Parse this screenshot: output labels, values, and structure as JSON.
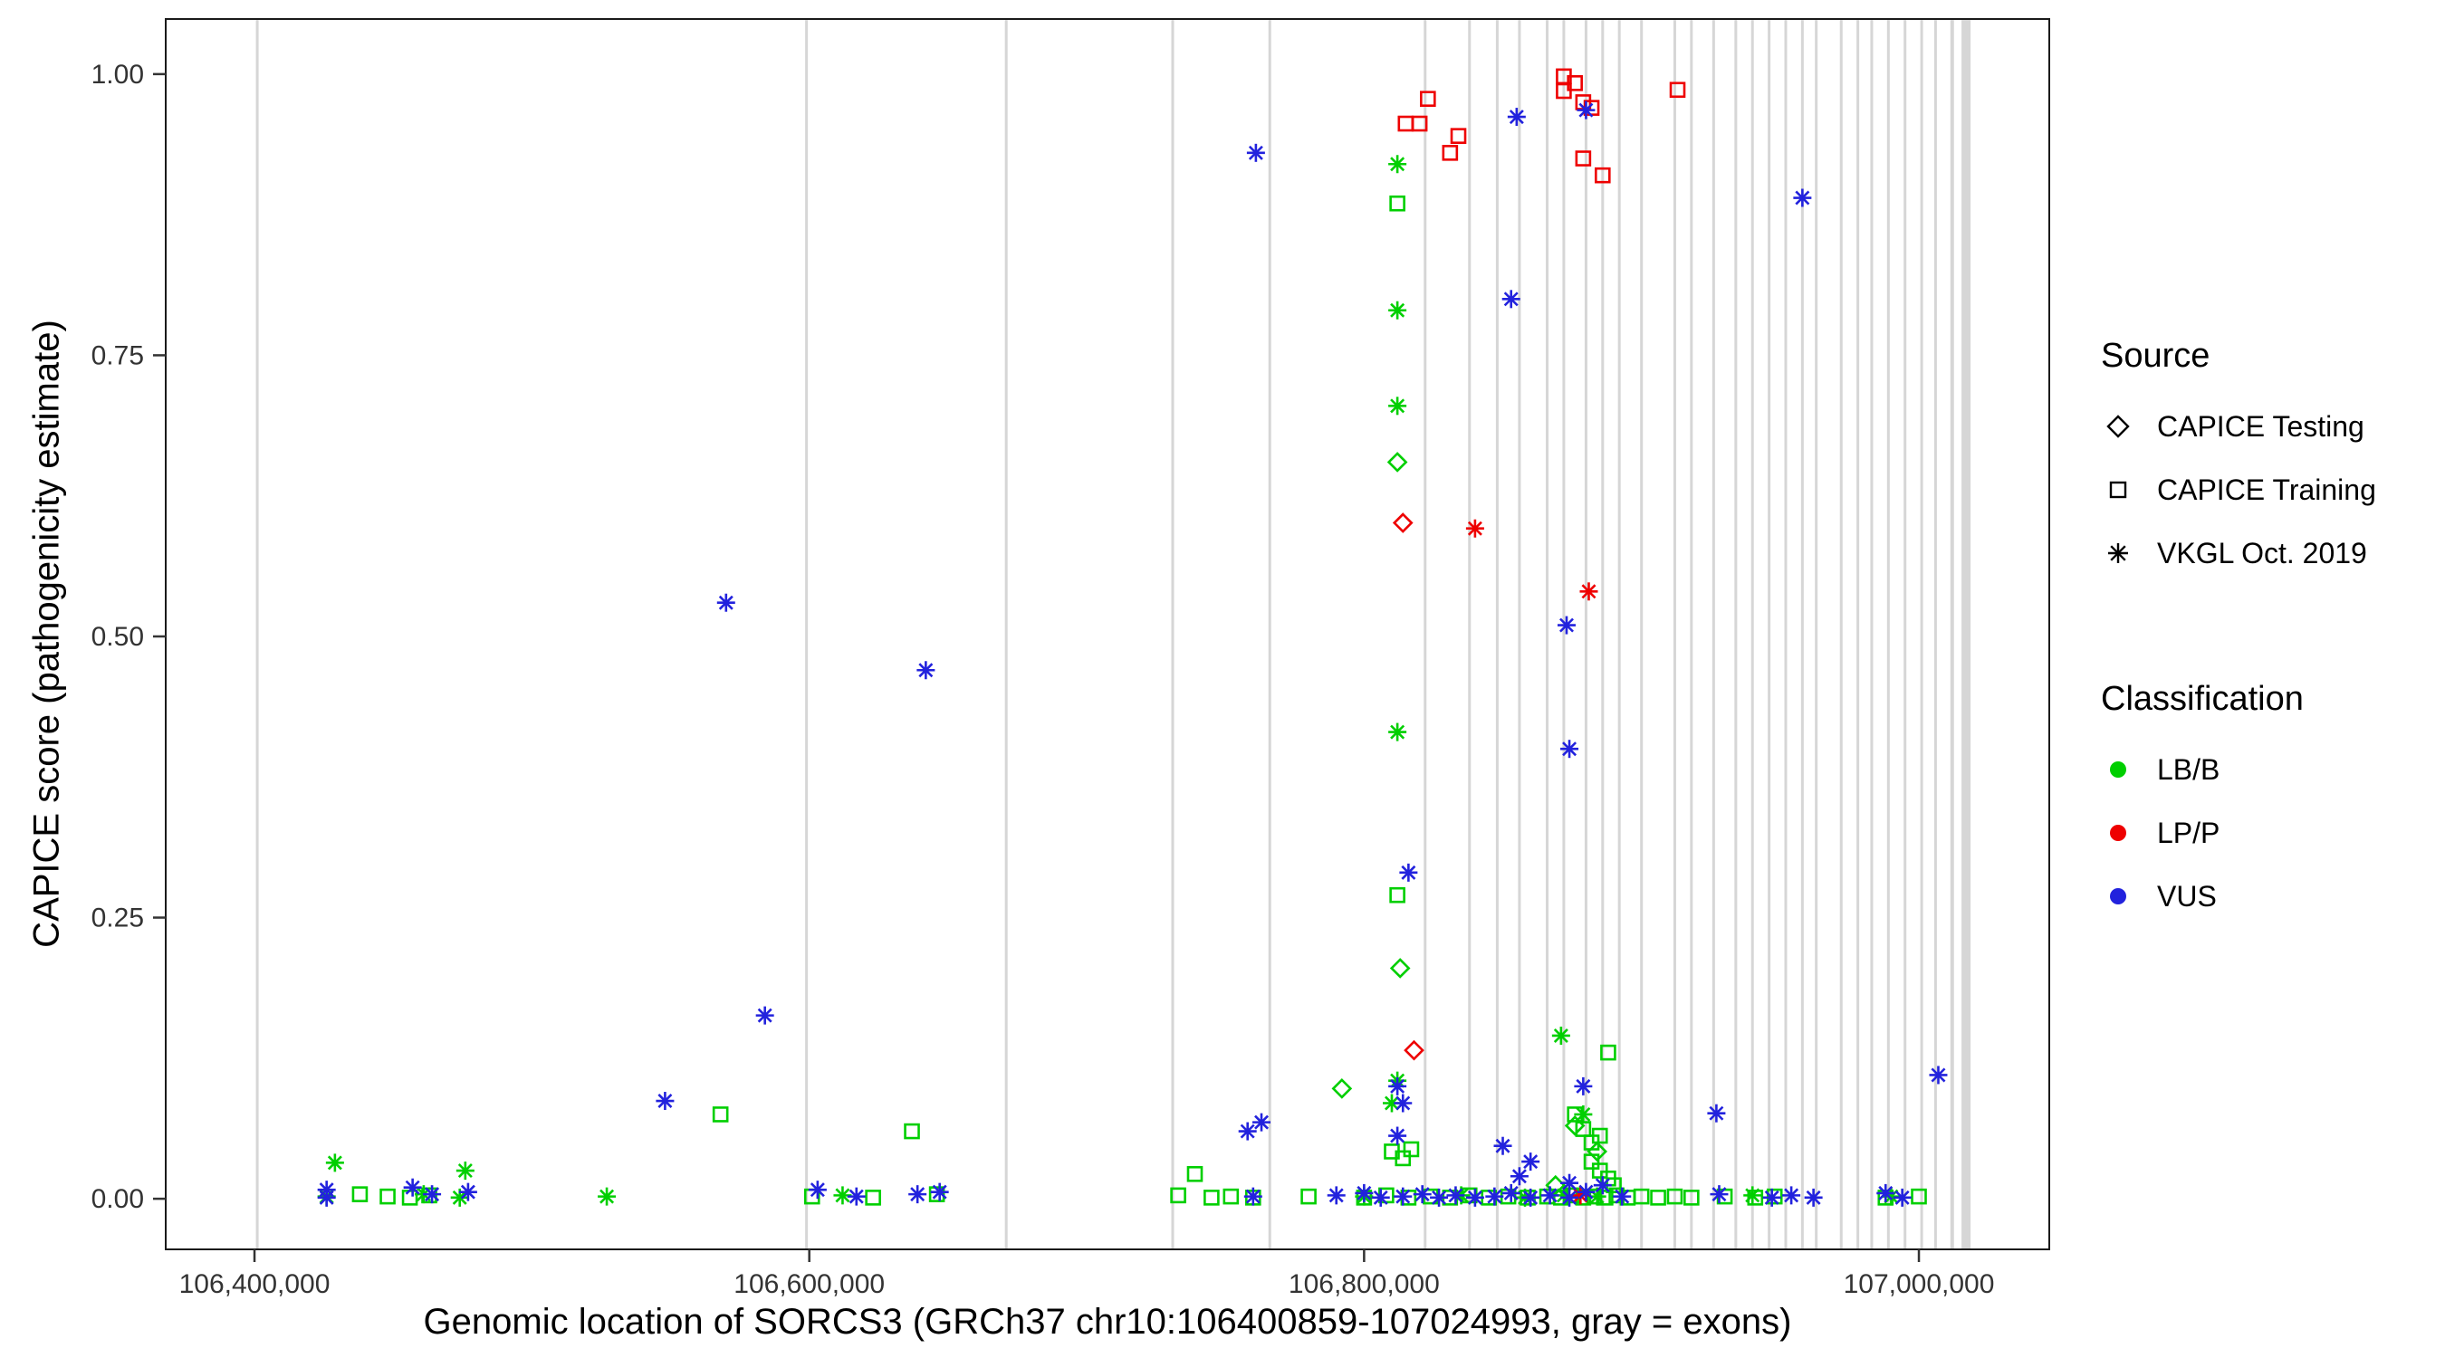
{
  "figure": {
    "x_axis_title": "Genomic location of SORCS3 (GRCh37 chr10:106400859-107024993, gray = exons)",
    "y_axis_title": "CAPICE score (pathogenicity estimate)"
  },
  "legend": {
    "source": {
      "title": "Source",
      "items": [
        {
          "label": "CAPICE Testing",
          "shape": "diamond"
        },
        {
          "label": "CAPICE Training",
          "shape": "square"
        },
        {
          "label": "VKGL Oct. 2019",
          "shape": "asterisk"
        }
      ]
    },
    "classification": {
      "title": "Classification",
      "items": [
        {
          "label": "LB/B",
          "color": "#00CF00"
        },
        {
          "label": "LP/P",
          "color": "#EE0000"
        },
        {
          "label": "VUS",
          "color": "#2222DD"
        }
      ]
    }
  },
  "chart_data": {
    "type": "scatter",
    "title": "",
    "xlabel": "Genomic location of SORCS3 (GRCh37 chr10:106400859-107024993, gray = exons)",
    "ylabel": "CAPICE score (pathogenicity estimate)",
    "x_domain": [
      106368000,
      107047000
    ],
    "y_domain": [
      -0.045,
      1.049
    ],
    "x_ticks": [
      {
        "value": 106400000,
        "label": "106,400,000"
      },
      {
        "value": 106600000,
        "label": "106,600,000"
      },
      {
        "value": 106800000,
        "label": "106,800,000"
      },
      {
        "value": 107000000,
        "label": "107,000,000"
      }
    ],
    "y_ticks": [
      {
        "value": 0.0,
        "label": "0.00"
      },
      {
        "value": 0.25,
        "label": "0.25"
      },
      {
        "value": 0.5,
        "label": "0.50"
      },
      {
        "value": 0.75,
        "label": "0.75"
      },
      {
        "value": 1.0,
        "label": "1.00"
      }
    ],
    "colors": {
      "LB/B": "#00CF00",
      "LP/P": "#EE0000",
      "VUS": "#2222DD",
      "exon": "#D6D6D6"
    },
    "shapes": {
      "CAPICE Testing": "diamond",
      "CAPICE Training": "square",
      "VKGL Oct. 2019": "asterisk"
    },
    "exons": [
      {
        "pos": 106401000,
        "w": 3
      },
      {
        "pos": 106599000,
        "w": 3
      },
      {
        "pos": 106671000,
        "w": 3
      },
      {
        "pos": 106731000,
        "w": 3
      },
      {
        "pos": 106766000,
        "w": 3
      },
      {
        "pos": 106822000,
        "w": 3
      },
      {
        "pos": 106838000,
        "w": 3
      },
      {
        "pos": 106848000,
        "w": 3
      },
      {
        "pos": 106856000,
        "w": 3
      },
      {
        "pos": 106866000,
        "w": 3
      },
      {
        "pos": 106872000,
        "w": 3
      },
      {
        "pos": 106880000,
        "w": 3
      },
      {
        "pos": 106886000,
        "w": 3
      },
      {
        "pos": 106892000,
        "w": 3
      },
      {
        "pos": 106900000,
        "w": 3
      },
      {
        "pos": 106912000,
        "w": 3
      },
      {
        "pos": 106918000,
        "w": 3
      },
      {
        "pos": 106926000,
        "w": 3
      },
      {
        "pos": 106934000,
        "w": 3
      },
      {
        "pos": 106940000,
        "w": 3
      },
      {
        "pos": 106946000,
        "w": 3
      },
      {
        "pos": 106952000,
        "w": 3
      },
      {
        "pos": 106958000,
        "w": 3
      },
      {
        "pos": 106963000,
        "w": 3
      },
      {
        "pos": 106972000,
        "w": 3
      },
      {
        "pos": 106978000,
        "w": 3
      },
      {
        "pos": 106983000,
        "w": 3
      },
      {
        "pos": 106989000,
        "w": 3
      },
      {
        "pos": 106995000,
        "w": 3
      },
      {
        "pos": 107001000,
        "w": 3
      },
      {
        "pos": 107006000,
        "w": 3
      },
      {
        "pos": 107012000,
        "w": 4
      },
      {
        "pos": 107017000,
        "w": 10
      }
    ],
    "series": [
      {
        "name": "LB/B - CAPICE Training",
        "classification": "LB/B",
        "source": "CAPICE Training",
        "points": [
          [
            106812000,
            0.885
          ],
          [
            106812000,
            0.27
          ],
          [
            106888000,
            0.13
          ],
          [
            106568000,
            0.075
          ],
          [
            106637000,
            0.06
          ],
          [
            106876000,
            0.075
          ],
          [
            106879000,
            0.062
          ],
          [
            106882000,
            0.05
          ],
          [
            106885000,
            0.056
          ],
          [
            106882000,
            0.033
          ],
          [
            106885000,
            0.025
          ],
          [
            106888000,
            0.018
          ],
          [
            106890000,
            0.012
          ],
          [
            106810000,
            0.042
          ],
          [
            106814000,
            0.036
          ],
          [
            106817000,
            0.044
          ],
          [
            106739000,
            0.022
          ],
          [
            106438000,
            0.004
          ],
          [
            106448000,
            0.002
          ],
          [
            106456000,
            0.001
          ],
          [
            106463000,
            0.003
          ],
          [
            106601000,
            0.002
          ],
          [
            106623000,
            0.001
          ],
          [
            106646000,
            0.004
          ],
          [
            106733000,
            0.003
          ],
          [
            106745000,
            0.001
          ],
          [
            106752000,
            0.002
          ],
          [
            106760000,
            0.001
          ],
          [
            106780000,
            0.002
          ],
          [
            106800000,
            0.001
          ],
          [
            106808000,
            0.003
          ],
          [
            106816000,
            0.001
          ],
          [
            106824000,
            0.002
          ],
          [
            106831000,
            0.001
          ],
          [
            106838000,
            0.003
          ],
          [
            106845000,
            0.001
          ],
          [
            106852000,
            0.002
          ],
          [
            106859000,
            0.001
          ],
          [
            106866000,
            0.002
          ],
          [
            106871000,
            0.001
          ],
          [
            106875000,
            0.003
          ],
          [
            106879000,
            0.001
          ],
          [
            106883000,
            0.002
          ],
          [
            106887000,
            0.001
          ],
          [
            106891000,
            0.003
          ],
          [
            106895000,
            0.001
          ],
          [
            106900000,
            0.002
          ],
          [
            106906000,
            0.001
          ],
          [
            106912000,
            0.002
          ],
          [
            106918000,
            0.001
          ],
          [
            106930000,
            0.002
          ],
          [
            106941000,
            0.001
          ],
          [
            106948000,
            0.002
          ],
          [
            106988000,
            0.001
          ],
          [
            107000000,
            0.002
          ]
        ]
      },
      {
        "name": "LB/B - CAPICE Testing",
        "classification": "LB/B",
        "source": "CAPICE Testing",
        "points": [
          [
            106812000,
            0.655
          ],
          [
            106813000,
            0.205
          ],
          [
            106792000,
            0.098
          ],
          [
            106876000,
            0.065
          ],
          [
            106884000,
            0.042
          ],
          [
            106869000,
            0.012
          ]
        ]
      },
      {
        "name": "LB/B - VKGL Oct. 2019",
        "classification": "LB/B",
        "source": "VKGL Oct. 2019",
        "points": [
          [
            106812000,
            0.92
          ],
          [
            106812000,
            0.79
          ],
          [
            106812000,
            0.705
          ],
          [
            106812000,
            0.415
          ],
          [
            106871000,
            0.145
          ],
          [
            106812000,
            0.105
          ],
          [
            106810000,
            0.085
          ],
          [
            106879000,
            0.075
          ],
          [
            106429000,
            0.032
          ],
          [
            106476000,
            0.025
          ],
          [
            106527000,
            0.002
          ],
          [
            106426000,
            0.002
          ],
          [
            106461000,
            0.004
          ],
          [
            106474000,
            0.001
          ],
          [
            106612000,
            0.003
          ],
          [
            106800000,
            0.002
          ],
          [
            106835000,
            0.003
          ],
          [
            106858000,
            0.001
          ],
          [
            106872000,
            0.003
          ],
          [
            106884000,
            0.002
          ],
          [
            106940000,
            0.003
          ],
          [
            106990000,
            0.002
          ]
        ]
      },
      {
        "name": "LP/P - CAPICE Training",
        "classification": "LP/P",
        "source": "CAPICE Training",
        "points": [
          [
            106815000,
            0.956
          ],
          [
            106820000,
            0.956
          ],
          [
            106823000,
            0.978
          ],
          [
            106831000,
            0.93
          ],
          [
            106834000,
            0.945
          ],
          [
            106872000,
            0.998
          ],
          [
            106872000,
            0.985
          ],
          [
            106876000,
            0.992
          ],
          [
            106879000,
            0.975
          ],
          [
            106882000,
            0.97
          ],
          [
            106879000,
            0.925
          ],
          [
            106886000,
            0.91
          ],
          [
            106913000,
            0.986
          ]
        ]
      },
      {
        "name": "LP/P - CAPICE Testing",
        "classification": "LP/P",
        "source": "CAPICE Testing",
        "points": [
          [
            106814000,
            0.601
          ],
          [
            106818000,
            0.132
          ]
        ]
      },
      {
        "name": "LP/P - VKGL Oct. 2019",
        "classification": "LP/P",
        "source": "VKGL Oct. 2019",
        "points": [
          [
            106840000,
            0.596
          ],
          [
            106881000,
            0.54
          ],
          [
            106878000,
            0.003
          ]
        ]
      },
      {
        "name": "VUS - VKGL Oct. 2019",
        "classification": "VUS",
        "source": "VKGL Oct. 2019",
        "points": [
          [
            106761000,
            0.93
          ],
          [
            106855000,
            0.962
          ],
          [
            106880000,
            0.968
          ],
          [
            106958000,
            0.89
          ],
          [
            106853000,
            0.8
          ],
          [
            106873000,
            0.51
          ],
          [
            106874000,
            0.4
          ],
          [
            106816000,
            0.29
          ],
          [
            106570000,
            0.53
          ],
          [
            106642000,
            0.47
          ],
          [
            106584000,
            0.163
          ],
          [
            106548000,
            0.087
          ],
          [
            107007000,
            0.11
          ],
          [
            106927000,
            0.076
          ],
          [
            106879000,
            0.1
          ],
          [
            106812000,
            0.1
          ],
          [
            106814000,
            0.085
          ],
          [
            106763000,
            0.068
          ],
          [
            106758000,
            0.06
          ],
          [
            106850000,
            0.047
          ],
          [
            106812000,
            0.056
          ],
          [
            106860000,
            0.033
          ],
          [
            106856000,
            0.02
          ],
          [
            106874000,
            0.014
          ],
          [
            106426000,
            0.008
          ],
          [
            106426000,
            0.001
          ],
          [
            106457000,
            0.01
          ],
          [
            106464000,
            0.004
          ],
          [
            106477000,
            0.006
          ],
          [
            106603000,
            0.008
          ],
          [
            106617000,
            0.002
          ],
          [
            106639000,
            0.004
          ],
          [
            106647000,
            0.006
          ],
          [
            106760000,
            0.002
          ],
          [
            106790000,
            0.003
          ],
          [
            106800000,
            0.005
          ],
          [
            106806000,
            0.001
          ],
          [
            106814000,
            0.002
          ],
          [
            106821000,
            0.004
          ],
          [
            106827000,
            0.001
          ],
          [
            106833000,
            0.003
          ],
          [
            106840000,
            0.001
          ],
          [
            106847000,
            0.002
          ],
          [
            106853000,
            0.005
          ],
          [
            106860000,
            0.001
          ],
          [
            106867000,
            0.003
          ],
          [
            106874000,
            0.001
          ],
          [
            106880000,
            0.006
          ],
          [
            106886000,
            0.012
          ],
          [
            106893000,
            0.002
          ],
          [
            106928000,
            0.004
          ],
          [
            106947000,
            0.001
          ],
          [
            106954000,
            0.003
          ],
          [
            106962000,
            0.001
          ],
          [
            106988000,
            0.005
          ],
          [
            106994000,
            0.001
          ]
        ]
      }
    ]
  }
}
